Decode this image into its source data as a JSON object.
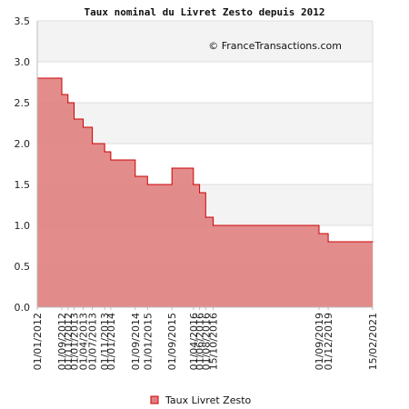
{
  "chart_data": {
    "type": "area",
    "title": "Taux nominal du Livret Zesto depuis 2012",
    "credit": "© FranceTransactions.com",
    "xlabel": "",
    "ylabel": "",
    "ylim": [
      0,
      3.5
    ],
    "y_ticks": [
      "0.0",
      "0.5",
      "1.0",
      "1.5",
      "2.0",
      "2.5",
      "3.0",
      "3.5"
    ],
    "x_range": [
      "2012-01-01",
      "2021-02-15"
    ],
    "x_ticks": [
      "01/01/2012",
      "01/09/2012",
      "01/11/2012",
      "01/01/2013",
      "01/04/2013",
      "01/07/2013",
      "01/11/2013",
      "01/01/2014",
      "01/09/2014",
      "01/01/2015",
      "01/09/2015",
      "01/04/2016",
      "01/06/2016",
      "01/08/2016",
      "15/10/2016",
      "01/09/2019",
      "01/12/2019",
      "15/02/2021"
    ],
    "grid": true,
    "legend_position": "bottom",
    "colors": {
      "fill": "#e07f7f",
      "line": "#cc0000",
      "band": "#f3f3f3",
      "grid": "#dddddd"
    },
    "series": [
      {
        "name": "Taux Livret Zesto",
        "x": [
          "2012-01-01",
          "2012-09-01",
          "2012-11-01",
          "2013-01-01",
          "2013-04-01",
          "2013-07-01",
          "2013-11-01",
          "2014-01-01",
          "2014-09-01",
          "2015-01-01",
          "2015-09-01",
          "2016-04-01",
          "2016-06-01",
          "2016-08-01",
          "2016-10-15",
          "2019-09-01",
          "2019-12-01",
          "2021-02-15"
        ],
        "values": [
          2.8,
          2.6,
          2.5,
          2.3,
          2.2,
          2.0,
          1.9,
          1.8,
          1.6,
          1.5,
          1.7,
          1.5,
          1.4,
          1.1,
          1.0,
          0.9,
          0.8,
          0.8
        ]
      }
    ]
  }
}
